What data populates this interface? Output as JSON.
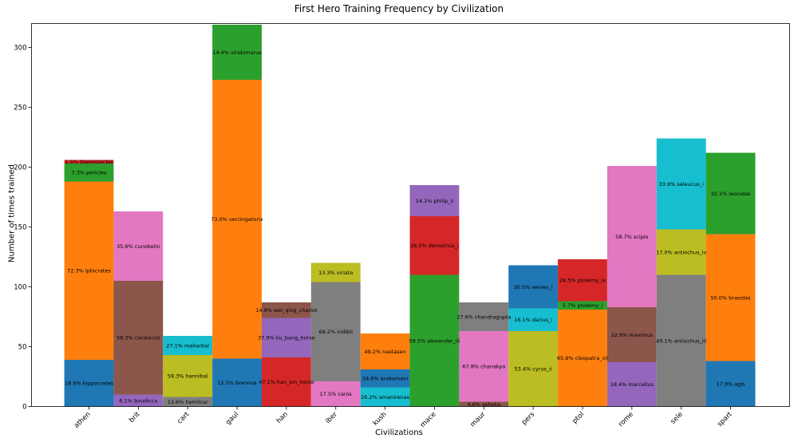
{
  "chart_data": {
    "type": "bar",
    "stacked": true,
    "title": "First Hero Training Frequency by Civilization",
    "xlabel": "Civilizations",
    "ylabel": "Number of times trained",
    "ylim": [
      0,
      320
    ],
    "yticks": [
      0,
      50,
      100,
      150,
      200,
      250,
      300
    ],
    "grid": false,
    "categories": [
      "athen",
      "brit",
      "cart",
      "gaul",
      "han",
      "iber",
      "kush",
      "mace",
      "maur",
      "pers",
      "ptol",
      "rome",
      "sele",
      "spart"
    ],
    "stacks": [
      {
        "category": "athen",
        "segments": [
          {
            "label": "18.9% hippocrates",
            "value": 39,
            "color": "#1f77b4"
          },
          {
            "label": "72.3% iphicrates",
            "value": 149,
            "color": "#ff7f0e"
          },
          {
            "label": "7.3% pericles",
            "value": 15,
            "color": "#2ca02c"
          },
          {
            "label": "1.5% themistocles",
            "value": 3,
            "color": "#d62728"
          }
        ]
      },
      {
        "category": "brit",
        "segments": [
          {
            "label": "6.1% boudicca",
            "value": 10,
            "color": "#9467bd"
          },
          {
            "label": "58.3% caratacos",
            "value": 95,
            "color": "#8c564b"
          },
          {
            "label": "35.6% cunobelin",
            "value": 58,
            "color": "#e377c2"
          }
        ]
      },
      {
        "category": "cart",
        "segments": [
          {
            "label": "13.6% hamilcar",
            "value": 8,
            "color": "#7f7f7f"
          },
          {
            "label": "59.3% hannibal",
            "value": 35,
            "color": "#bcbd22"
          },
          {
            "label": "27.1% maharbal",
            "value": 16,
            "color": "#17becf"
          }
        ]
      },
      {
        "category": "gaul",
        "segments": [
          {
            "label": "12.5% brennus",
            "value": 40,
            "color": "#1f77b4"
          },
          {
            "label": "73.0% vercingetorix",
            "value": 233,
            "color": "#ff7f0e"
          },
          {
            "label": "14.4% viridomarus",
            "value": 46,
            "color": "#2ca02c"
          }
        ]
      },
      {
        "category": "han",
        "segments": [
          {
            "label": "47.1% han_xin_horse",
            "value": 41,
            "color": "#d62728"
          },
          {
            "label": "37.9% liu_bang_horse",
            "value": 33,
            "color": "#9467bd"
          },
          {
            "label": "14.9% wei_qing_chariot",
            "value": 13,
            "color": "#8c564b"
          }
        ]
      },
      {
        "category": "iber",
        "segments": [
          {
            "label": "17.5% caros",
            "value": 21,
            "color": "#e377c2"
          },
          {
            "label": "69.2% indibil",
            "value": 83,
            "color": "#7f7f7f"
          },
          {
            "label": "13.3% viriato",
            "value": 16,
            "color": "#bcbd22"
          }
        ]
      },
      {
        "category": "kush",
        "segments": [
          {
            "label": "26.2% amanirenas",
            "value": 16,
            "color": "#17becf"
          },
          {
            "label": "24.6% arakamani",
            "value": 15,
            "color": "#1f77b4"
          },
          {
            "label": "49.2% nastasen",
            "value": 30,
            "color": "#ff7f0e"
          }
        ]
      },
      {
        "category": "mace",
        "segments": [
          {
            "label": "59.5% alexander_iii",
            "value": 110,
            "color": "#2ca02c"
          },
          {
            "label": "26.5% demetrius_i",
            "value": 49,
            "color": "#d62728"
          },
          {
            "label": "14.1% philip_ii",
            "value": 26,
            "color": "#9467bd"
          }
        ]
      },
      {
        "category": "maur",
        "segments": [
          {
            "label": "4.6% ashoka",
            "value": 4,
            "color": "#8c564b"
          },
          {
            "label": "67.8% chanakya",
            "value": 59,
            "color": "#e377c2"
          },
          {
            "label": "27.6% chandragupta",
            "value": 24,
            "color": "#7f7f7f"
          }
        ]
      },
      {
        "category": "pers",
        "segments": [
          {
            "label": "53.4% cyrus_ii",
            "value": 63,
            "color": "#bcbd22"
          },
          {
            "label": "16.1% darius_i",
            "value": 19,
            "color": "#17becf"
          },
          {
            "label": "30.5% xerxes_i",
            "value": 36,
            "color": "#1f77b4"
          }
        ]
      },
      {
        "category": "ptol",
        "segments": [
          {
            "label": "65.9% cleopatra_vii",
            "value": 81,
            "color": "#ff7f0e"
          },
          {
            "label": "5.7% ptolemy_i",
            "value": 7,
            "color": "#2ca02c"
          },
          {
            "label": "28.5% ptolemy_iv",
            "value": 35,
            "color": "#d62728"
          }
        ]
      },
      {
        "category": "rome",
        "segments": [
          {
            "label": "18.4% marcellus",
            "value": 37,
            "color": "#9467bd"
          },
          {
            "label": "22.9% maximus",
            "value": 46,
            "color": "#8c564b"
          },
          {
            "label": "58.7% scipio",
            "value": 118,
            "color": "#e377c2"
          }
        ]
      },
      {
        "category": "sele",
        "segments": [
          {
            "label": "49.1% antiochus_iii",
            "value": 110,
            "color": "#7f7f7f"
          },
          {
            "label": "17.0% antiochus_iv",
            "value": 38,
            "color": "#bcbd22"
          },
          {
            "label": "33.9% seleucus_i",
            "value": 76,
            "color": "#17becf"
          }
        ]
      },
      {
        "category": "spart",
        "segments": [
          {
            "label": "17.9% agis",
            "value": 38,
            "color": "#1f77b4"
          },
          {
            "label": "50.0% brasidas",
            "value": 106,
            "color": "#ff7f0e"
          },
          {
            "label": "32.1% leonidas",
            "value": 68,
            "color": "#2ca02c"
          }
        ]
      }
    ]
  }
}
